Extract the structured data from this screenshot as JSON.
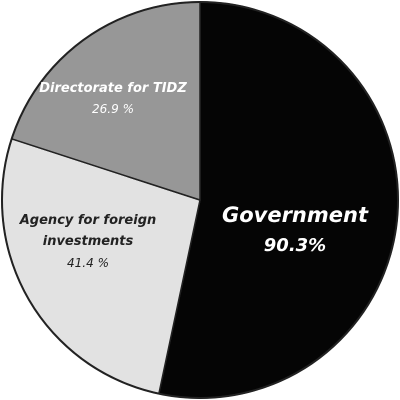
{
  "chart_data": {
    "type": "pie",
    "slices": [
      {
        "label": "Government",
        "value_label": "90.3%",
        "share": 0.5333,
        "color": "#050505",
        "text_color": "#ffffff"
      },
      {
        "label": "Agency for foreign investments",
        "label_lines": [
          "Agency for foreign",
          "investments"
        ],
        "value_label": "41.4 %",
        "share": 0.2667,
        "color": "#e2e2e2",
        "text_color": "#222222"
      },
      {
        "label": "Directorate for TIDZ",
        "value_label": "26.9 %",
        "share": 0.2,
        "color": "#979797",
        "text_color": "#ffffff"
      }
    ]
  }
}
